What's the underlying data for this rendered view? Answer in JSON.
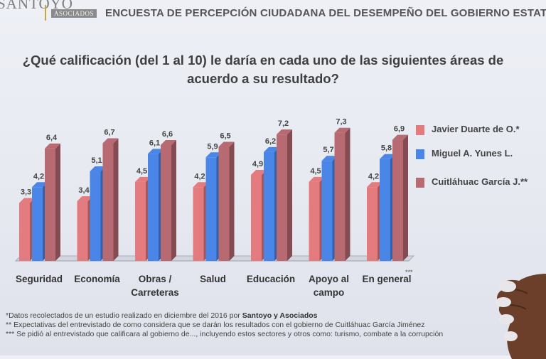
{
  "header": {
    "logo_text": "SANTOYO",
    "logo_sub": "ASOCIADOS",
    "title": "ENCUESTA DE PERCEPCIÓN CIUDADANA DEL DESEMPEÑO DEL GOBIERNO ESTATAL"
  },
  "question": {
    "line1": "¿Qué calificación (del 1 al 10) le daría en cada uno de las siguientes áreas de",
    "line2": "acuerdo a su resultado?"
  },
  "chart_data": {
    "type": "bar",
    "categories": [
      "Seguridad",
      "Economía",
      "Obras / Carreteras",
      "Salud",
      "Educación",
      "Apoyo al campo",
      "En general"
    ],
    "category_lines": [
      [
        "Seguridad"
      ],
      [
        "Economía"
      ],
      [
        "Obras /",
        "Carreteras"
      ],
      [
        "Salud"
      ],
      [
        "Educación"
      ],
      [
        "Apoyo al",
        "campo"
      ],
      [
        "En general"
      ]
    ],
    "series": [
      {
        "name": "Javier Duarte de O.*",
        "values": [
          3.3,
          3.4,
          4.5,
          4.2,
          4.9,
          4.5,
          4.2
        ],
        "labels": [
          "3,3",
          "3,4",
          "4,5",
          "4,2",
          "4,9",
          "4,5",
          "4,2"
        ],
        "color": "#e37b7f"
      },
      {
        "name": "Miguel A. Yunes L.",
        "values": [
          4.2,
          5.1,
          6.1,
          5.9,
          6.2,
          5.7,
          5.8
        ],
        "labels": [
          "4,2",
          "5,1",
          "6,1",
          "5,9",
          "6,2",
          "5,7",
          "5,8"
        ],
        "color": "#4a86e8"
      },
      {
        "name": "Cuitláhuac García J.**",
        "values": [
          6.4,
          6.7,
          6.6,
          6.5,
          7.2,
          7.3,
          6.9
        ],
        "labels": [
          "6,4",
          "6,7",
          "6,6",
          "6,5",
          "7,2",
          "7,3",
          "6,9"
        ],
        "color": "#b86a72"
      }
    ],
    "ylim": [
      0,
      10
    ],
    "grid": false,
    "legend_position": "right",
    "annotation": "***"
  },
  "footnotes": {
    "line1_text": "*Datos recolectados de un estudio realizado en diciembre del 2016  por ",
    "line1_highlight": "Santoyo y Asociados",
    "line2": "** Expectativas  del entrevistado de como considera  que se darán los resultados con el gobierno de  Cuitláhuac García Jiménez",
    "line3": "*** Se pidió al entrevistado que calificara al gobierno de..., incluyendo estos sectores y otros como: turismo, combate a la corrupción"
  }
}
